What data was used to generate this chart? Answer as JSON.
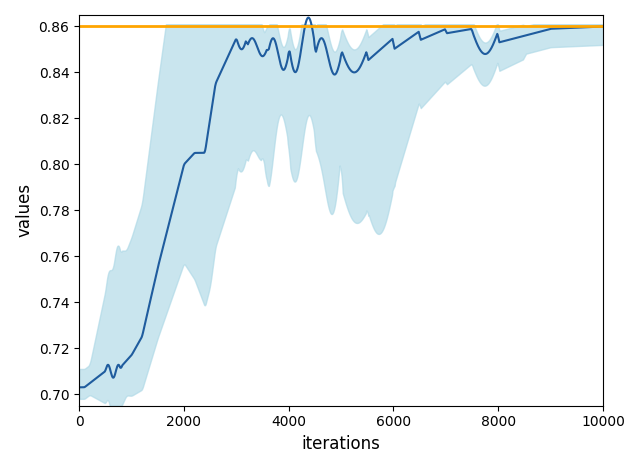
{
  "xlabel": "iterations",
  "ylabel": "values",
  "xlim": [
    0,
    10000
  ],
  "ylim": [
    0.695,
    0.865
  ],
  "hline_value": 0.86,
  "hline_color": "#FFA500",
  "line_color": "#1f5c9e",
  "fill_color": "#add8e6",
  "fill_alpha": 0.65
}
